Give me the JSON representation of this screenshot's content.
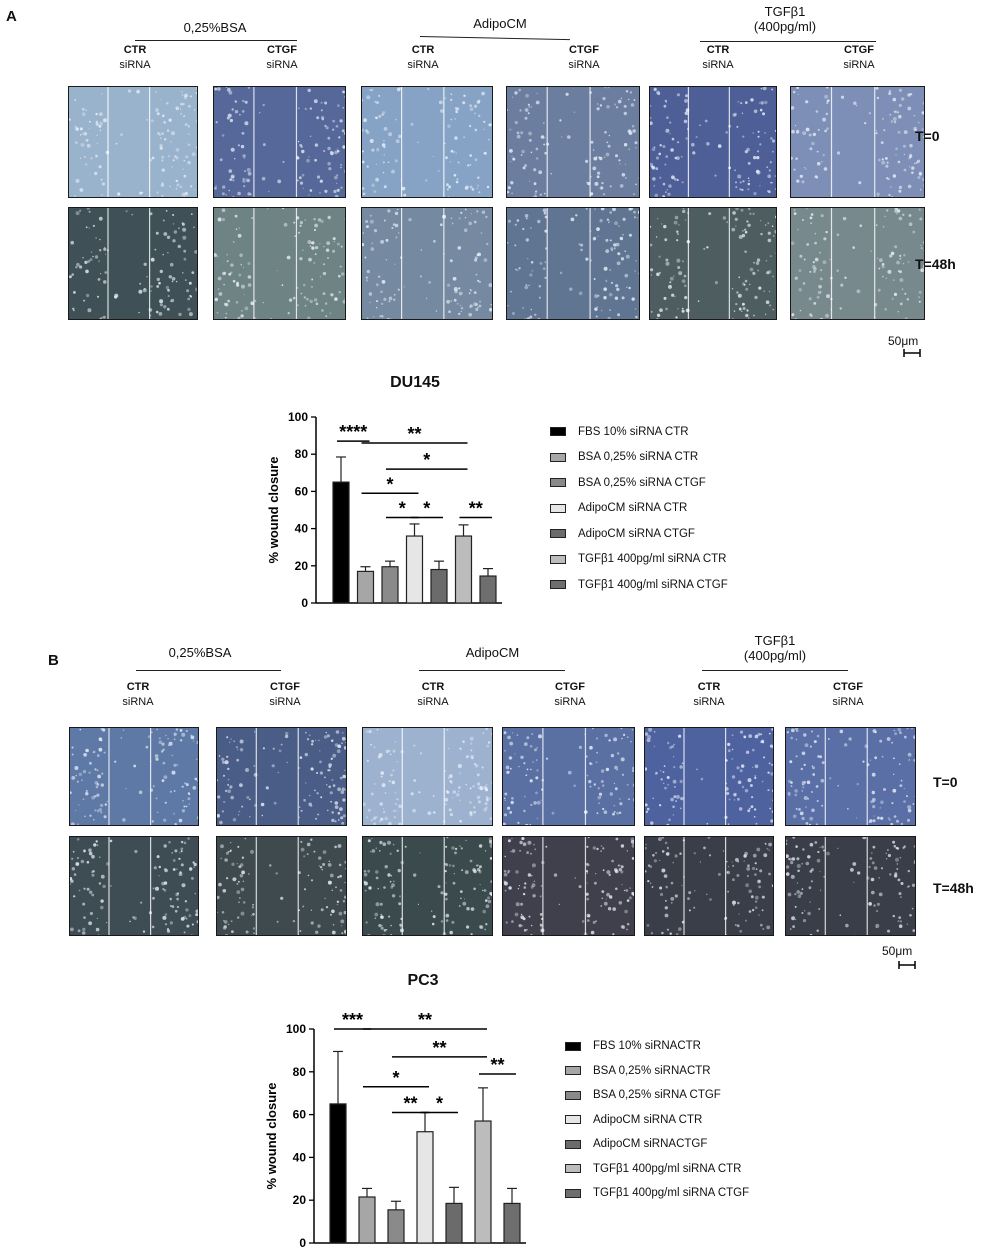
{
  "panels": [
    {
      "letter": "A",
      "groups": [
        {
          "title": "0,25%BSA",
          "cols": [
            {
              "top": "CTR",
              "bottom": "siRNA"
            },
            {
              "top": "CTGF",
              "bottom": "siRNA"
            }
          ]
        },
        {
          "title": "AdipoCM",
          "cols": [
            {
              "top": "CTR",
              "bottom": "siRNA"
            },
            {
              "top": "CTGF",
              "bottom": "siRNA"
            }
          ]
        },
        {
          "title": "TGFβ1\n(400pg/ml)",
          "cols": [
            {
              "top": "CTR",
              "bottom": "siRNA"
            },
            {
              "top": "CTGF",
              "bottom": "siRNA"
            }
          ]
        }
      ],
      "time_labels": [
        "T=0",
        "T=48h"
      ],
      "scale_bar": "50μm"
    },
    {
      "letter": "B",
      "groups": [
        {
          "title": "0,25%BSA",
          "cols": [
            {
              "top": "CTR",
              "bottom": "siRNA"
            },
            {
              "top": "CTGF",
              "bottom": "siRNA"
            }
          ]
        },
        {
          "title": "AdipoCM",
          "cols": [
            {
              "top": "CTR",
              "bottom": "siRNA"
            },
            {
              "top": "CTGF",
              "bottom": "siRNA"
            }
          ]
        },
        {
          "title": "TGFβ1\n(400pg/ml)",
          "cols": [
            {
              "top": "CTR",
              "bottom": "siRNA"
            },
            {
              "top": "CTGF",
              "bottom": "siRNA"
            }
          ]
        }
      ],
      "time_labels": [
        "T=0",
        "T=48h"
      ],
      "scale_bar": "50μm"
    }
  ],
  "micrograph_tints": {
    "A": [
      [
        "#9ab3cc",
        "#56689a",
        "#86a3c6",
        "#6c7ea0",
        "#4d5f96",
        "#7d8fb6"
      ],
      [
        "#3f5156",
        "#6e8384",
        "#758aa0",
        "#5f7591",
        "#4d5d60",
        "#78898e"
      ]
    ],
    "B": [
      [
        "#5f79a6",
        "#4a5d86",
        "#9db2cf",
        "#5a70a3",
        "#4e62a0",
        "#5a6fa6"
      ],
      [
        "#3e4d54",
        "#3f4a4e",
        "#3b4a4c",
        "#40404c",
        "#3a3e48",
        "#3a3e48"
      ]
    ]
  },
  "chart_data": [
    {
      "type": "bar",
      "title": "DU145",
      "ylabel": "% wound closure",
      "ylim": [
        0,
        100
      ],
      "yticks": [
        0,
        20,
        40,
        60,
        80,
        100
      ],
      "categories": [
        "FBS 10% siRNA CTR",
        "BSA  0,25% siRNA CTR",
        "BSA  0,25% siRNA CTGF",
        "AdipoCM siRNA CTR",
        "AdipoCM siRNA CTGF",
        "TGFβ1 400pg/ml siRNA CTR",
        "TGFβ1 400g/ml siRNA CTGF"
      ],
      "values": [
        65,
        17,
        19.5,
        36,
        18,
        36,
        14.5
      ],
      "errors": [
        13.5,
        2.5,
        3,
        6.5,
        4.5,
        6,
        4
      ],
      "colors": [
        "#000000",
        "#a6a6a6",
        "#8a8a8a",
        "#e6e6e6",
        "#6b6b6b",
        "#bcbcbc",
        "#6e6e6e"
      ],
      "significance": [
        {
          "from": 0,
          "to": 1,
          "label": "****",
          "y": 87
        },
        {
          "from": 1,
          "to": 5,
          "label": "**",
          "y": 86
        },
        {
          "from": 2,
          "to": 5,
          "label": "*",
          "y": 72
        },
        {
          "from": 1,
          "to": 3,
          "label": "*",
          "y": 59
        },
        {
          "from": 2,
          "to": 3,
          "label": "*",
          "y": 46
        },
        {
          "from": 3,
          "to": 4,
          "label": "*",
          "y": 46
        },
        {
          "from": 5,
          "to": 6,
          "label": "**",
          "y": 46
        }
      ]
    },
    {
      "type": "bar",
      "title": "PC3",
      "ylabel": "% wound closure",
      "ylim": [
        0,
        100
      ],
      "yticks": [
        0,
        20,
        40,
        60,
        80,
        100
      ],
      "categories": [
        "FBS 10% siRNACTR",
        "BSA  0,25% siRNACTR",
        "BSA  0,25% siRNA CTGF",
        "AdipoCM siRNA CTR",
        "AdipoCM siRNACTGF",
        "TGFβ1 400pg/ml siRNA CTR",
        "TGFβ1 400pg/ml siRNA CTGF"
      ],
      "values": [
        65,
        21.5,
        15.5,
        52,
        18.5,
        57,
        18.5
      ],
      "errors": [
        24.5,
        4,
        4,
        9,
        7.5,
        15.5,
        7
      ],
      "colors": [
        "#000000",
        "#a6a6a6",
        "#8a8a8a",
        "#e6e6e6",
        "#6b6b6b",
        "#bcbcbc",
        "#6e6e6e"
      ],
      "significance": [
        {
          "from": 0,
          "to": 1,
          "label": "***",
          "y": 100
        },
        {
          "from": 1,
          "to": 5,
          "label": "**",
          "y": 100
        },
        {
          "from": 2,
          "to": 5,
          "label": "**",
          "y": 87
        },
        {
          "from": 1,
          "to": 3,
          "label": "*",
          "y": 73
        },
        {
          "from": 2,
          "to": 3,
          "label": "**",
          "y": 61
        },
        {
          "from": 3,
          "to": 4,
          "label": "*",
          "y": 61
        },
        {
          "from": 5,
          "to": 6,
          "label": "**",
          "y": 79
        }
      ]
    }
  ]
}
